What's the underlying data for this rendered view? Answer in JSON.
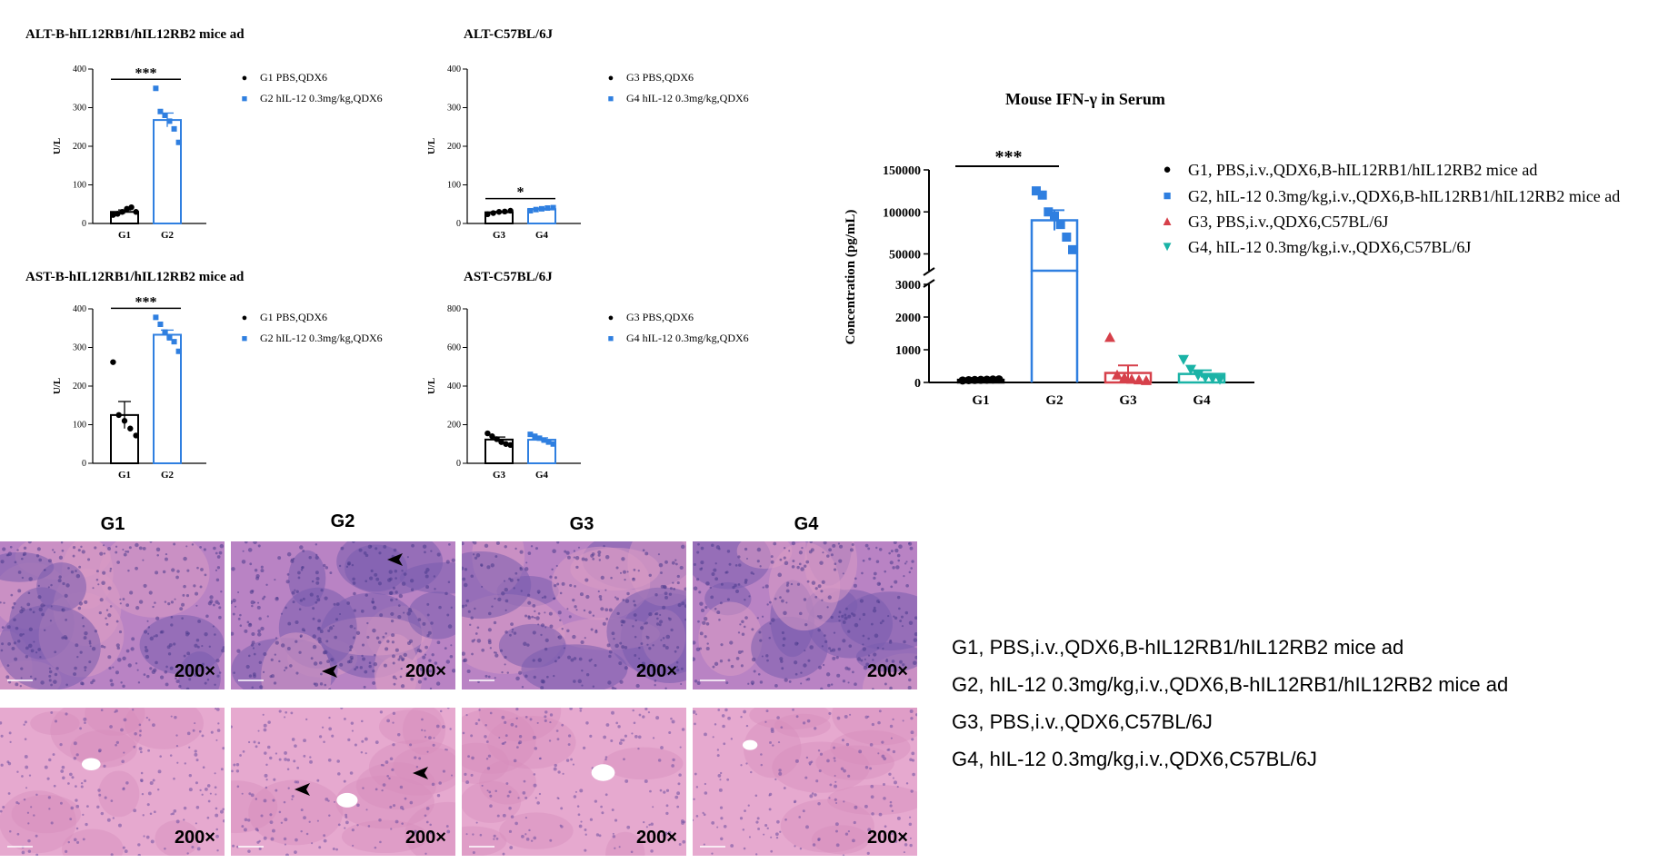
{
  "colors": {
    "black": "#000000",
    "blue": "#2f7fe0",
    "red": "#d6404a",
    "teal": "#1ab3a6"
  },
  "chart_data": [
    {
      "id": "alt1",
      "type": "bar",
      "title": "ALT-B-hIL12RB1/hIL12RB2 mice ad",
      "ylabel": "U/L",
      "categories": [
        "G1",
        "G2"
      ],
      "ylim": [
        0,
        400
      ],
      "yticks": [
        0,
        100,
        200,
        300,
        400
      ],
      "series": [
        {
          "name": "G1 PBS,QDX6",
          "color": "#000000",
          "mean": 30,
          "sem": 5,
          "points": [
            22,
            25,
            30,
            38,
            42,
            30
          ]
        },
        {
          "name": "G2 hIL-12 0.3mg/kg,QDX6",
          "color": "#2f7fe0",
          "mean": 268,
          "sem": 18,
          "points": [
            350,
            290,
            280,
            265,
            245,
            210
          ]
        }
      ],
      "significance": "***"
    },
    {
      "id": "alt2",
      "type": "bar",
      "title": "ALT-C57BL/6J",
      "ylabel": "U/L",
      "categories": [
        "G3",
        "G4"
      ],
      "ylim": [
        0,
        400
      ],
      "yticks": [
        0,
        100,
        200,
        300,
        400
      ],
      "series": [
        {
          "name": "G3 PBS,QDX6",
          "color": "#000000",
          "mean": 29,
          "sem": 2,
          "points": [
            24,
            27,
            30,
            31,
            33
          ]
        },
        {
          "name": "G4 hIL-12 0.3mg/kg,QDX6",
          "color": "#2f7fe0",
          "mean": 37,
          "sem": 2,
          "points": [
            33,
            36,
            38,
            40,
            41
          ]
        }
      ],
      "significance": "*"
    },
    {
      "id": "ast1",
      "type": "bar",
      "title": "AST-B-hIL12RB1/hIL12RB2 mice ad",
      "ylabel": "U/L",
      "categories": [
        "G1",
        "G2"
      ],
      "ylim": [
        0,
        400
      ],
      "yticks": [
        0,
        100,
        200,
        300,
        400
      ],
      "series": [
        {
          "name": "G1 PBS,QDX6",
          "color": "#000000",
          "mean": 125,
          "sem": 35,
          "points": [
            262,
            125,
            110,
            90,
            72
          ]
        },
        {
          "name": "G2 hIL-12 0.3mg/kg,QDX6",
          "color": "#2f7fe0",
          "mean": 333,
          "sem": 12,
          "points": [
            378,
            360,
            340,
            325,
            315,
            290
          ]
        }
      ],
      "significance": "***"
    },
    {
      "id": "ast2",
      "type": "bar",
      "title": "AST-C57BL/6J",
      "ylabel": "U/L",
      "categories": [
        "G3",
        "G4"
      ],
      "ylim": [
        0,
        800
      ],
      "yticks": [
        0,
        200,
        400,
        600,
        800
      ],
      "series": [
        {
          "name": "G3 PBS,QDX6",
          "color": "#000000",
          "mean": 123,
          "sem": 13,
          "points": [
            155,
            140,
            125,
            110,
            100,
            95
          ]
        },
        {
          "name": "G4 hIL-12 0.3mg/kg,QDX6",
          "color": "#2f7fe0",
          "mean": 122,
          "sem": 10,
          "points": [
            150,
            140,
            130,
            120,
            110,
            100
          ]
        }
      ],
      "significance": ""
    },
    {
      "id": "ifn",
      "type": "bar",
      "title": "Mouse IFN-γ in Serum",
      "ylabel": "Concentration (pg/mL)",
      "categories": [
        "G1",
        "G2",
        "G3",
        "G4"
      ],
      "broken_axis": {
        "lower": [
          0,
          3000
        ],
        "upper": [
          30000,
          150000
        ]
      },
      "yticks_lower": [
        0,
        1000,
        2000,
        3000
      ],
      "yticks_upper": [
        50000,
        100000,
        150000
      ],
      "series": [
        {
          "name": "G1, PBS,i.v.,QDX6,B-hIL12RB1/hIL12RB2 mice ad",
          "color": "#000000",
          "marker": "circle",
          "mean": 80,
          "sem": 10,
          "points": [
            60,
            70,
            75,
            80,
            85,
            90,
            95
          ]
        },
        {
          "name": "G2, hIL-12 0.3mg/kg,i.v.,QDX6,B-hIL12RB1/hIL12RB2 mice ad",
          "color": "#2f7fe0",
          "marker": "square",
          "mean": 90000,
          "sem": 12000,
          "points": [
            125000,
            120000,
            100000,
            95000,
            85000,
            70000,
            55000
          ]
        },
        {
          "name": "G3, PBS,i.v.,QDX6,C57BL/6J",
          "color": "#d6404a",
          "marker": "triangle-up",
          "mean": 290,
          "sem": 230,
          "points": [
            1380,
            230,
            150,
            100,
            80,
            60
          ]
        },
        {
          "name": "G4, hIL-12 0.3mg/kg,i.v.,QDX6,C57BL/6J",
          "color": "#1ab3a6",
          "marker": "triangle-down",
          "mean": 260,
          "sem": 110,
          "points": [
            700,
            400,
            220,
            150,
            120,
            90
          ]
        }
      ],
      "significance": "***"
    }
  ],
  "histology": {
    "group_labels": [
      "G1",
      "G2",
      "G3",
      "G4"
    ],
    "magnification": "200×"
  },
  "bottom_legend": [
    "G1, PBS,i.v.,QDX6,B-hIL12RB1/hIL12RB2 mice ad",
    "G2, hIL-12 0.3mg/kg,i.v.,QDX6,B-hIL12RB1/hIL12RB2 mice ad",
    "G3, PBS,i.v.,QDX6,C57BL/6J",
    "G4, hIL-12 0.3mg/kg,i.v.,QDX6,C57BL/6J"
  ]
}
